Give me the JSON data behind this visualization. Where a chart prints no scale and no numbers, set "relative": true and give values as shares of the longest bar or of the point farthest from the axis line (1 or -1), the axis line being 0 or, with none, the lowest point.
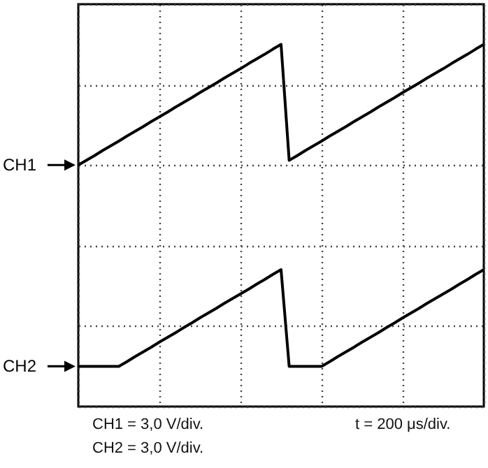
{
  "chart_data": {
    "type": "line",
    "relative": true,
    "legend": "left",
    "grid": true,
    "line_style": "solid",
    "categories": [
      null,
      null,
      null,
      null,
      null,
      null,
      null,
      null,
      null,
      null,
      null,
      null,
      null,
      null,
      null,
      null,
      null,
      null,
      null,
      null,
      null,
      null,
      null,
      null,
      null,
      null,
      null,
      null,
      null,
      null,
      null,
      null,
      null,
      null,
      null,
      null,
      null,
      null,
      null,
      null,
      null,
      null,
      null,
      null,
      null,
      null,
      null,
      null,
      null,
      null,
      null
    ],
    "series": [
      {
        "name": "CH1",
        "color": "#000000",
        "values": [
          0.667,
          0.68,
          0.693,
          0.707,
          0.72,
          0.733,
          0.747,
          0.76,
          0.773,
          0.787,
          0.8,
          0.813,
          0.827,
          0.84,
          0.853,
          0.867,
          0.88,
          0.893,
          0.907,
          0.92,
          0.933,
          0.947,
          0.96,
          0.973,
          0.987,
          1,
          0.68,
          0.693,
          0.707,
          0.72,
          0.733,
          0.747,
          0.76,
          0.773,
          0.787,
          0.8,
          0.813,
          0.827,
          0.84,
          0.853,
          0.867,
          0.88,
          0.893,
          0.907,
          0.92,
          0.933,
          0.947,
          0.96,
          0.973,
          0.987,
          1
        ]
      },
      {
        "name": "CH2",
        "color": "#000000",
        "values": [
          0.111,
          0.111,
          0.111,
          0.111,
          0.111,
          0.111,
          0.124,
          0.138,
          0.151,
          0.164,
          0.178,
          0.191,
          0.204,
          0.218,
          0.231,
          0.245,
          0.258,
          0.271,
          0.285,
          0.298,
          0.311,
          0.324,
          0.338,
          0.351,
          0.365,
          0.378,
          0.111,
          0.111,
          0.111,
          0.111,
          0.111,
          0.124,
          0.138,
          0.151,
          0.164,
          0.178,
          0.191,
          0.204,
          0.218,
          0.231,
          0.245,
          0.258,
          0.271,
          0.285,
          0.298,
          0.311,
          0.324,
          0.338,
          0.351,
          0.365,
          0.378
        ]
      }
    ],
    "annotations": [
      "CH1 = 3,0 V/div.",
      "CH2 = 3,0 V/div.",
      "t = 200 μs/div."
    ]
  }
}
